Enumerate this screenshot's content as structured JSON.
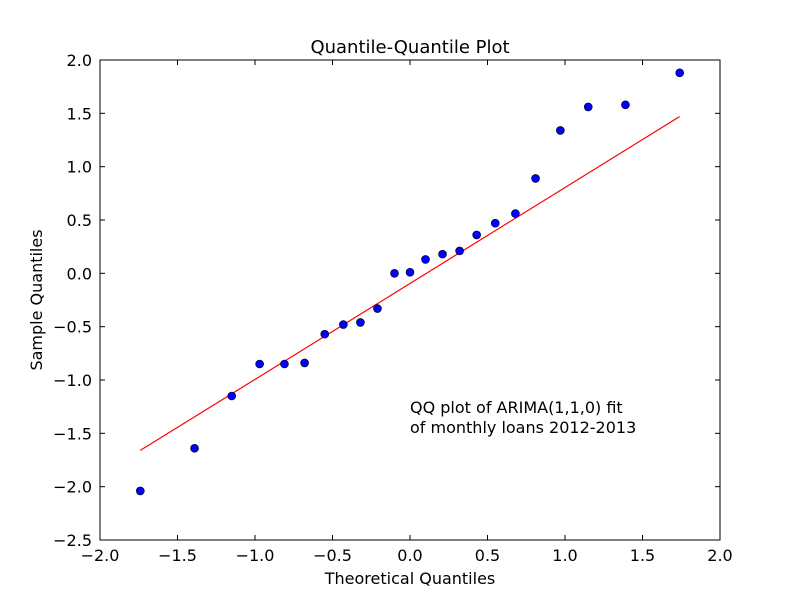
{
  "chart_data": {
    "type": "scatter",
    "title": "Quantile-Quantile Plot",
    "xlabel": "Theoretical Quantiles",
    "ylabel": "Sample Quantiles",
    "xlim": [
      -2.0,
      2.0
    ],
    "ylim": [
      -2.5,
      2.0
    ],
    "xticks": [
      -2.0,
      -1.5,
      -1.0,
      -0.5,
      0.0,
      0.5,
      1.0,
      1.5,
      2.0
    ],
    "xtick_labels": [
      "−2.0",
      "−1.5",
      "−1.0",
      "−0.5",
      "0.0",
      "0.5",
      "1.0",
      "1.5",
      "2.0"
    ],
    "yticks": [
      -2.5,
      -2.0,
      -1.5,
      -1.0,
      -0.5,
      0.0,
      0.5,
      1.0,
      1.5,
      2.0
    ],
    "ytick_labels": [
      "−2.5",
      "−2.0",
      "−1.5",
      "−1.0",
      "−0.5",
      "0.0",
      "0.5",
      "1.0",
      "1.5",
      "2.0"
    ],
    "grid": false,
    "points": [
      [
        -1.74,
        -2.04
      ],
      [
        -1.39,
        -1.64
      ],
      [
        -1.15,
        -1.15
      ],
      [
        -0.97,
        -0.85
      ],
      [
        -0.81,
        -0.85
      ],
      [
        -0.68,
        -0.84
      ],
      [
        -0.55,
        -0.57
      ],
      [
        -0.43,
        -0.48
      ],
      [
        -0.32,
        -0.46
      ],
      [
        -0.21,
        -0.33
      ],
      [
        -0.1,
        0.0
      ],
      [
        0.0,
        0.01
      ],
      [
        0.1,
        0.13
      ],
      [
        0.21,
        0.18
      ],
      [
        0.32,
        0.21
      ],
      [
        0.43,
        0.36
      ],
      [
        0.55,
        0.47
      ],
      [
        0.68,
        0.56
      ],
      [
        0.81,
        0.89
      ],
      [
        0.97,
        1.34
      ],
      [
        1.15,
        1.56
      ],
      [
        1.39,
        1.58
      ],
      [
        1.74,
        1.88
      ]
    ],
    "fit_line": {
      "x": [
        -1.74,
        1.74
      ],
      "y": [
        -1.66,
        1.47
      ]
    },
    "annotation": [
      "QQ plot of ARIMA(1,1,0) fit",
      "of monthly loans 2012-2013"
    ],
    "colors": {
      "points": "#0000ff",
      "point_edge": "#000000",
      "line": "#ff0000"
    }
  }
}
